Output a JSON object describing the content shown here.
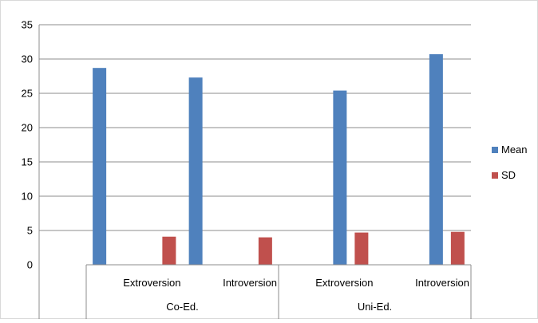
{
  "chart_data": {
    "type": "bar",
    "title": "",
    "xlabel": "",
    "ylabel": "",
    "ylim": [
      0,
      35
    ],
    "yticks": [
      0,
      5,
      10,
      15,
      20,
      25,
      30,
      35
    ],
    "grid": true,
    "legend_position": "right",
    "categories": [
      {
        "group": "Co-Ed.",
        "label": "",
        "mean": 28.7,
        "sd": null
      },
      {
        "group": "Co-Ed.",
        "label": "Extroversion",
        "mean": null,
        "sd": 4.1
      },
      {
        "group": "Co-Ed.",
        "label": "",
        "mean": 27.3,
        "sd": null
      },
      {
        "group": "Co-Ed.",
        "label": "Introversion",
        "mean": null,
        "sd": 4.0
      },
      {
        "group": "Uni-Ed.",
        "label": "",
        "mean": null,
        "sd": null
      },
      {
        "group": "Uni-Ed.",
        "label": "Extroversion",
        "mean": 25.4,
        "sd": 4.7
      },
      {
        "group": "Uni-Ed.",
        "label": "",
        "mean": null,
        "sd": null
      },
      {
        "group": "Uni-Ed.",
        "label": "Introversion",
        "mean": 30.7,
        "sd": 4.8
      }
    ],
    "groups": [
      "Co-Ed.",
      "Uni-Ed."
    ],
    "series": [
      {
        "key": "mean",
        "name": "Mean",
        "color": "#4f81bd"
      },
      {
        "key": "sd",
        "name": "SD",
        "color": "#c0504d"
      }
    ]
  }
}
